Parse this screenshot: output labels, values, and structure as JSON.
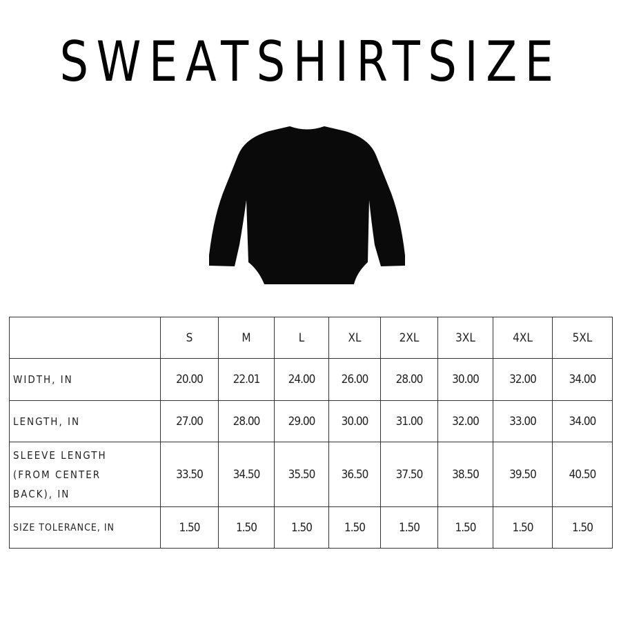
{
  "title": "SWEATSHIRTSIZE",
  "image": {
    "alt_icon": "black-sweatshirt-back-view"
  },
  "table": {
    "sizes": [
      "S",
      "M",
      "L",
      "XL",
      "2XL",
      "3XL",
      "4XL",
      "5XL"
    ],
    "rows": [
      {
        "label": "WIDTH, IN",
        "values": [
          "20.00",
          "22.01",
          "24.00",
          "26.00",
          "28.00",
          "30.00",
          "32.00",
          "34.00"
        ]
      },
      {
        "label": "LENGTH, IN",
        "values": [
          "27.00",
          "28.00",
          "29.00",
          "30.00",
          "31.00",
          "32.00",
          "33.00",
          "34.00"
        ]
      },
      {
        "label": "SLEEVE LENGTH (FROM CENTER BACK), IN",
        "values": [
          "33.50",
          "34.50",
          "35.50",
          "36.50",
          "37.50",
          "38.50",
          "39.50",
          "40.50"
        ]
      },
      {
        "label": "SIZE TOLERANCE, IN",
        "values": [
          "1.50",
          "1.50",
          "1.50",
          "1.50",
          "1.50",
          "1.50",
          "1.50",
          "1.50"
        ]
      }
    ]
  }
}
